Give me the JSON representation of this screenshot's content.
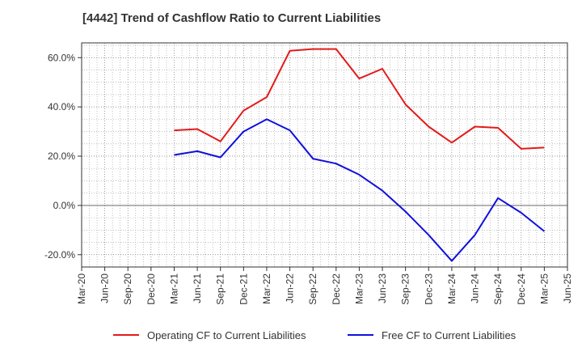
{
  "chart_data": {
    "type": "line",
    "title": "[4442]  Trend of Cashflow Ratio to Current Liabilities",
    "xlabel": "",
    "ylabel": "",
    "y_unit": "%",
    "ylim": [
      -25,
      66
    ],
    "y_ticks": [
      -20,
      0,
      20,
      40,
      60
    ],
    "y_tick_labels": [
      "-20.0%",
      "0.0%",
      "20.0%",
      "40.0%",
      "60.0%"
    ],
    "grid": true,
    "legend_position": "bottom",
    "categories": [
      "Mar-20",
      "Jun-20",
      "Sep-20",
      "Dec-20",
      "Mar-21",
      "Jun-21",
      "Sep-21",
      "Dec-21",
      "Mar-22",
      "Jun-22",
      "Sep-22",
      "Dec-22",
      "Mar-23",
      "Jun-23",
      "Sep-23",
      "Dec-23",
      "Mar-24",
      "Jun-24",
      "Sep-24",
      "Dec-24",
      "Mar-25",
      "Jun-25"
    ],
    "x": [
      "Mar-20",
      "Jun-20",
      "Sep-20",
      "Dec-20",
      "Mar-21",
      "Apr-21",
      "May-21",
      "Jun-21",
      "Sep-21",
      "Dec-21",
      "Mar-22",
      "Jun-22",
      "Sep-22",
      "Dec-22",
      "Jan-23",
      "Feb-23",
      "Mar-23",
      "Jun-23",
      "Sep-23",
      "Dec-23",
      "Mar-24",
      "Jun-24",
      "Sep-24",
      "Oct-24",
      "Nov-24",
      "Dec-24",
      "Mar-25",
      "Jun-25"
    ],
    "series": [
      {
        "name": "Operating CF to Current Liabilities",
        "color": "#e31a1a",
        "values": [
          null,
          null,
          null,
          null,
          30.5,
          null,
          null,
          31.0,
          26.0,
          38.5,
          44.0,
          62.8,
          63.5,
          63.5,
          null,
          null,
          51.5,
          55.5,
          41.0,
          32.0,
          25.5,
          32.0,
          31.5,
          null,
          null,
          23.0,
          23.5,
          null
        ]
      },
      {
        "name": "Free CF to Current Liabilities",
        "color": "#1010dd",
        "values": [
          null,
          null,
          null,
          null,
          20.5,
          null,
          null,
          22.0,
          19.5,
          30.0,
          35.0,
          30.5,
          19.0,
          17.0,
          null,
          null,
          12.5,
          6.0,
          -2.5,
          -12.0,
          -22.5,
          -12.0,
          3.0,
          null,
          null,
          -3.0,
          -10.5,
          null
        ]
      }
    ]
  }
}
